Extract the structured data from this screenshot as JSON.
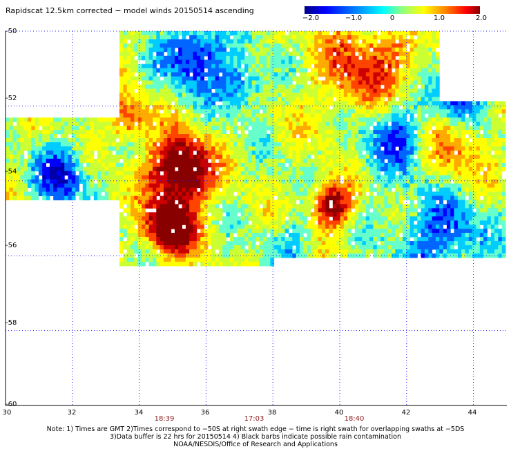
{
  "title": "Rapidscat 12.5km corrected − model winds 20150514 ascending",
  "colorbar": {
    "min": -2.0,
    "max": 2.0,
    "tick_labels": [
      "−2.0",
      "−1.0",
      "0",
      "1.0",
      "2.0"
    ],
    "tick_values": [
      -2.0,
      -1.0,
      0,
      1.0,
      2.0
    ]
  },
  "map": {
    "lat_range": [
      -60,
      -50
    ],
    "lon_range": [
      30,
      45
    ],
    "lat_labels": [
      "-50",
      "-52",
      "-54",
      "-56",
      "-58",
      "-60"
    ],
    "lon_labels": [
      "30",
      "32",
      "34",
      "36",
      "38",
      "40",
      "42",
      "44"
    ],
    "grid": "dotted blue"
  },
  "swath_times": [
    {
      "label": "18:39",
      "lon": 34.7
    },
    {
      "label": "17:03",
      "lon": 37.4
    },
    {
      "label": "18:40",
      "lon": 40.4
    }
  ],
  "notes": [
    "Note: 1) Times are GMT 2)Times correspond to −50S at right swath edge − time is right swath for overlapping swaths at −5DS",
    "3)Data buffer is 22 hrs for 20150514 4) Black barbs indicate possible rain contamination",
    "NOAA/NESDIS/Office of Research and Applications"
  ],
  "colors": {
    "grid": "#1a1aff",
    "time_labels": "#8b1a1a",
    "palette": [
      "#0000aa",
      "#0000ff",
      "#0066ff",
      "#00ccff",
      "#66ffcc",
      "#ccff33",
      "#ffff00",
      "#ffaa00",
      "#ff4400",
      "#cc0000",
      "#880000"
    ]
  }
}
